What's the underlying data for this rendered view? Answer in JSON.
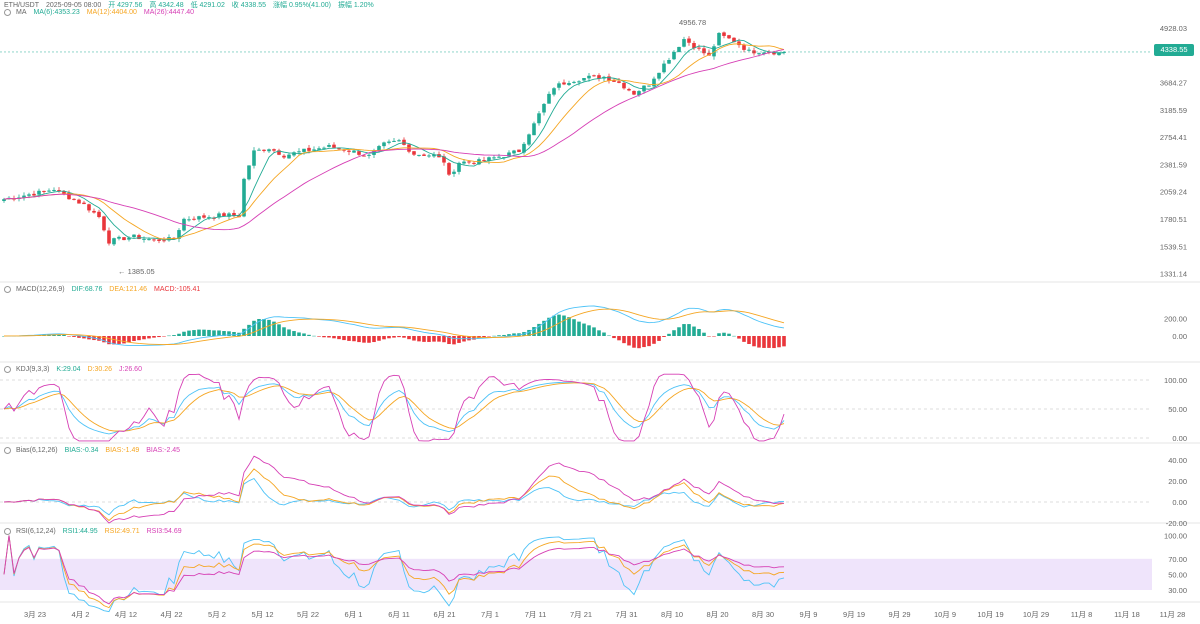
{
  "header": {
    "symbol": "ETH/USDT",
    "time": "2025-09-05 08:00",
    "open": "开 4297.56",
    "high": "高 4342.48",
    "low": "低 4291.02",
    "close": "收 4338.55",
    "change": "涨幅 0.95%(41.00)",
    "amplitude": "振幅 1.20%"
  },
  "legends": {
    "ma": {
      "title": "MA",
      "items": [
        {
          "label": "MA(6):4353.23",
          "color": "#22ab94"
        },
        {
          "label": "MA(12):4404.00",
          "color": "#f5a623"
        },
        {
          "label": "MA(26):4447.40",
          "color": "#d63fb5"
        }
      ]
    },
    "macd": {
      "title": "MACD(12,26,9)",
      "items": [
        {
          "label": "DIF:68.76",
          "color": "#22ab94"
        },
        {
          "label": "DEA:121.46",
          "color": "#f5a623"
        },
        {
          "label": "MACD:-105.41",
          "color": "#e9363b"
        }
      ]
    },
    "kdj": {
      "title": "KDJ(9,3,3)",
      "items": [
        {
          "label": "K:29.04",
          "color": "#22ab94"
        },
        {
          "label": "D:30.26",
          "color": "#f5a623"
        },
        {
          "label": "J:26.60",
          "color": "#d63fb5"
        }
      ]
    },
    "bias": {
      "title": "Bias(6,12,26)",
      "items": [
        {
          "label": "BIAS:-0.34",
          "color": "#22ab94"
        },
        {
          "label": "BIAS:-1.49",
          "color": "#f5a623"
        },
        {
          "label": "BIAS:-2.45",
          "color": "#d63fb5"
        }
      ]
    },
    "rsi": {
      "title": "RSI(6,12,24)",
      "items": [
        {
          "label": "RSI1:44.95",
          "color": "#22ab94"
        },
        {
          "label": "RSI2:49.71",
          "color": "#f5a623"
        },
        {
          "label": "RSI3:54.69",
          "color": "#d63fb5"
        }
      ]
    }
  },
  "current_price": "4338.55",
  "colors": {
    "up": "#22ab94",
    "down": "#e9363b",
    "ma6": "#22ab94",
    "ma12": "#f5a623",
    "ma26": "#d63fb5"
  },
  "chart_data": {
    "type": "candlestick",
    "price_axis": {
      "ticks": [
        "4928.03",
        "3684.27",
        "3185.59",
        "2754.41",
        "2381.59",
        "2059.24",
        "1780.51",
        "1539.51",
        "1331.14"
      ],
      "scale": "log",
      "range": [
        1300,
        5200
      ]
    },
    "time_axis": {
      "ticks": [
        "3月 23",
        "4月 2",
        "4月 12",
        "4月 22",
        "5月 2",
        "5月 12",
        "5月 22",
        "6月 1",
        "6月 11",
        "6月 21",
        "7月 1",
        "7月 11",
        "7月 21",
        "7月 31",
        "8月 10",
        "8月 20",
        "8月 30",
        "9月 9",
        "9月 19",
        "9月 29",
        "10月 9",
        "10月 19",
        "10月 29",
        "11月 8",
        "11月 18",
        "11月 28"
      ]
    },
    "annotations": [
      {
        "label": "4956.78",
        "type": "high"
      },
      {
        "label": "1385.05",
        "type": "low"
      }
    ],
    "close_anchors": [
      {
        "day": 0,
        "close": 1980
      },
      {
        "day": 3,
        "close": 2010
      },
      {
        "day": 7,
        "close": 2050
      },
      {
        "day": 10,
        "close": 2090
      },
      {
        "day": 13,
        "close": 2000
      },
      {
        "day": 16,
        "close": 1920
      },
      {
        "day": 19,
        "close": 1800
      },
      {
        "day": 21,
        "close": 1580
      },
      {
        "day": 23,
        "close": 1600
      },
      {
        "day": 26,
        "close": 1620
      },
      {
        "day": 30,
        "close": 1590
      },
      {
        "day": 34,
        "close": 1600
      },
      {
        "day": 36,
        "close": 1780
      },
      {
        "day": 40,
        "close": 1800
      },
      {
        "day": 44,
        "close": 1820
      },
      {
        "day": 47,
        "close": 1810
      },
      {
        "day": 48,
        "close": 2200
      },
      {
        "day": 50,
        "close": 2550
      },
      {
        "day": 53,
        "close": 2600
      },
      {
        "day": 56,
        "close": 2500
      },
      {
        "day": 60,
        "close": 2560
      },
      {
        "day": 65,
        "close": 2620
      },
      {
        "day": 70,
        "close": 2550
      },
      {
        "day": 73,
        "close": 2490
      },
      {
        "day": 76,
        "close": 2650
      },
      {
        "day": 79,
        "close": 2700
      },
      {
        "day": 82,
        "close": 2520
      },
      {
        "day": 86,
        "close": 2500
      },
      {
        "day": 88,
        "close": 2420
      },
      {
        "day": 89,
        "close": 2230
      },
      {
        "day": 91,
        "close": 2410
      },
      {
        "day": 95,
        "close": 2420
      },
      {
        "day": 100,
        "close": 2500
      },
      {
        "day": 103,
        "close": 2560
      },
      {
        "day": 106,
        "close": 2950
      },
      {
        "day": 110,
        "close": 3600
      },
      {
        "day": 113,
        "close": 3720
      },
      {
        "day": 117,
        "close": 3790
      },
      {
        "day": 120,
        "close": 3800
      },
      {
        "day": 123,
        "close": 3680
      },
      {
        "day": 126,
        "close": 3480
      },
      {
        "day": 129,
        "close": 3660
      },
      {
        "day": 133,
        "close": 4200
      },
      {
        "day": 136,
        "close": 4650
      },
      {
        "day": 139,
        "close": 4400
      },
      {
        "day": 141,
        "close": 4230
      },
      {
        "day": 143,
        "close": 4750
      },
      {
        "day": 146,
        "close": 4600
      },
      {
        "day": 149,
        "close": 4350
      },
      {
        "day": 152,
        "close": 4360
      },
      {
        "day": 155,
        "close": 4320
      },
      {
        "day": 156,
        "close": 4338.55
      }
    ],
    "macd_axis": {
      "ticks": [
        "200.00",
        "0.00"
      ]
    },
    "kdj_axis": {
      "ticks": [
        "100.00",
        "50.00",
        "0.00"
      ]
    },
    "bias_axis": {
      "ticks": [
        "40.00",
        "20.00",
        "0.00",
        "-20.00"
      ]
    },
    "rsi_axis": {
      "ticks": [
        "100.00",
        "70.00",
        "50.00",
        "30.00"
      ]
    }
  }
}
